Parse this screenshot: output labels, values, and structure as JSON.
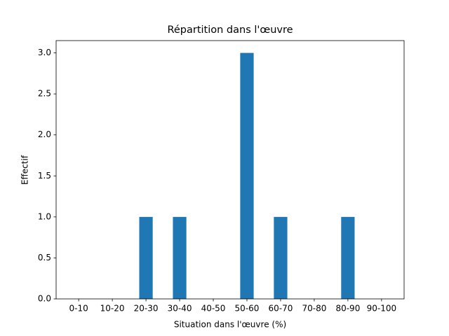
{
  "chart_data": {
    "type": "bar",
    "title": "Répartition dans l'œuvre",
    "xlabel": "Situation dans l'œuvre (%)",
    "ylabel": "Effectif",
    "categories": [
      "0-10",
      "10-20",
      "20-30",
      "30-40",
      "40-50",
      "50-60",
      "60-70",
      "70-80",
      "80-90",
      "90-100"
    ],
    "values": [
      0,
      0,
      1,
      1,
      0,
      3,
      1,
      0,
      1,
      0
    ],
    "color": "#1f77b4",
    "ylim": [
      0,
      3.15
    ],
    "yticks": [
      {
        "value": 0,
        "label": "0.0"
      },
      {
        "value": 0.5,
        "label": "0.5"
      },
      {
        "value": 1,
        "label": "1.0"
      },
      {
        "value": 1.5,
        "label": "1.5"
      },
      {
        "value": 2,
        "label": "2.0"
      },
      {
        "value": 2.5,
        "label": "2.5"
      },
      {
        "value": 3,
        "label": "3.0"
      }
    ],
    "grid": false
  }
}
